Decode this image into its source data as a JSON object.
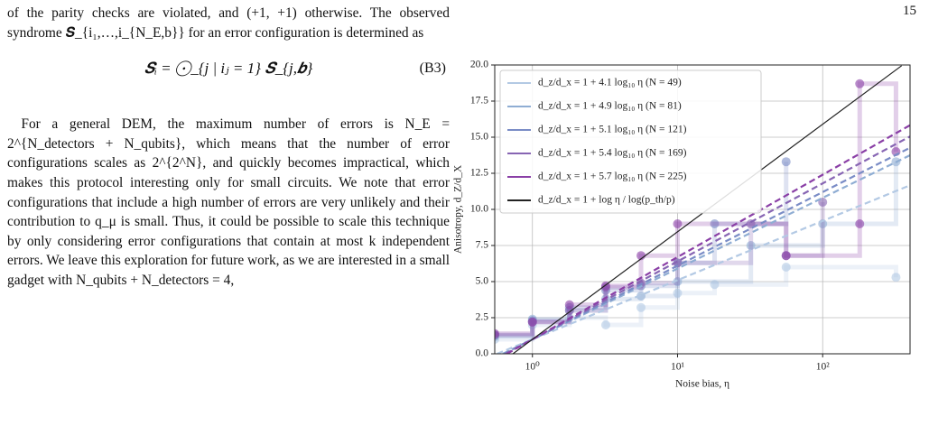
{
  "page_number": "15",
  "text": {
    "paragraph_1": "of the parity checks are violated, and (+1, +1) otherwise. The observed syndrome 𝑺_{i₁,…,i_{N_E,b}} for an error configuration is determined as",
    "equation": "𝑺ᵢ = ⨀_{j | iⱼ = 1} 𝑺_{j,𝒃}",
    "equation_label": "(B3)",
    "paragraph_2": "For a general DEM, the maximum number of errors is N_E = 2^{N_detectors + N_qubits}, which means that the number of error configurations scales as 2^{2^N}, and quickly becomes impractical, which makes this protocol interesting only for small circuits. We note that error configurations that include a high number of errors are very unlikely and their contribution to q_μ is small. Thus, it could be possible to scale this technique by only considering error configurations that contain at most k independent errors. We leave this exploration for future work, as we are interested in a small gadget with N_qubits + N_detectors = 4,"
  },
  "chart_data": {
    "type": "line",
    "xlabel": "Noise bias, η",
    "ylabel": "Anisotropy, d_Z/d_X",
    "log_x": true,
    "grid": true,
    "legend": "upper left",
    "xlim": [
      0.55,
      400
    ],
    "ylim": [
      0,
      20
    ],
    "xticks": [
      {
        "value": 1,
        "label": "10⁰"
      },
      {
        "value": 10,
        "label": "10¹"
      },
      {
        "value": 100,
        "label": "10²"
      }
    ],
    "yticks": [
      {
        "value": 0,
        "label": "0.0"
      },
      {
        "value": 2.5,
        "label": "2.5"
      },
      {
        "value": 5,
        "label": "5.0"
      },
      {
        "value": 7.5,
        "label": "7.5"
      },
      {
        "value": 10,
        "label": "10.0"
      },
      {
        "value": 12.5,
        "label": "12.5"
      },
      {
        "value": 15,
        "label": "15.0"
      },
      {
        "value": 17.5,
        "label": "17.5"
      },
      {
        "value": 20,
        "label": "20.0"
      }
    ],
    "series": [
      {
        "name": "d_z/d_x = 1 + 4.1 log₁₀ η (N = 49)",
        "color": "#b3c9e4",
        "line_style": "dashed",
        "x": [
          0.55,
          1,
          1.8,
          3.2,
          5.6,
          10,
          18,
          56,
          320
        ],
        "values": [
          1.0,
          2.0,
          2.5,
          2.0,
          3.2,
          4.2,
          4.8,
          6.0,
          5.3
        ],
        "fit_x": [
          0.57,
          400
        ],
        "fit_values": [
          0.0,
          11.67
        ]
      },
      {
        "name": "d_z/d_x = 1 + 4.9 log₁₀ η (N = 81)",
        "color": "#8fadd3",
        "line_style": "dashed",
        "x": [
          0.55,
          1,
          1.8,
          3.2,
          5.6,
          10,
          32,
          100,
          320
        ],
        "values": [
          1.2,
          2.4,
          3.0,
          3.8,
          4.0,
          5.0,
          7.5,
          9.0,
          13.3
        ],
        "fit_x": [
          0.625,
          400
        ],
        "fit_values": [
          0.0,
          13.75
        ]
      },
      {
        "name": "d_z/d_x = 1 + 5.1 log₁₀ η (N = 121)",
        "color": "#7a8cc6",
        "line_style": "dashed",
        "x": [
          0.55,
          1,
          1.8,
          3.2,
          5.6,
          10,
          18,
          56
        ],
        "values": [
          1.3,
          2.3,
          3.2,
          4.4,
          4.7,
          6.3,
          9.0,
          13.3
        ],
        "fit_x": [
          0.637,
          400
        ],
        "fit_values": [
          0.0,
          14.27
        ]
      },
      {
        "name": "d_z/d_x = 1 + 5.4 log₁₀ η (N = 169)",
        "color": "#8765b3",
        "line_style": "dashed",
        "x": [
          0.55,
          1,
          1.8,
          3.2,
          5.6,
          10,
          32,
          56,
          100
        ],
        "values": [
          1.3,
          2.2,
          3.0,
          4.6,
          4.9,
          6.3,
          9.0,
          6.8,
          10.5
        ],
        "fit_x": [
          0.653,
          400
        ],
        "fit_values": [
          0.0,
          15.05
        ]
      },
      {
        "name": "d_z/d_x = 1 + 5.7 log₁₀ η (N = 225)",
        "color": "#8a3fa6",
        "line_style": "dashed",
        "x": [
          0.55,
          1,
          1.8,
          3.2,
          5.6,
          10,
          56,
          180,
          180,
          320
        ],
        "values": [
          1.4,
          2.2,
          3.4,
          4.7,
          6.8,
          9.0,
          6.8,
          9.0,
          18.7,
          14.0
        ],
        "fit_x": [
          0.668,
          400
        ],
        "fit_values": [
          0.0,
          15.83
        ]
      },
      {
        "name": "d_z/d_x = 1 + log η / log(p_th/p)",
        "color": "#222222",
        "line_style": "solid",
        "fit_x": [
          0.734,
          350
        ],
        "fit_values": [
          0.0,
          19.95
        ]
      }
    ]
  }
}
